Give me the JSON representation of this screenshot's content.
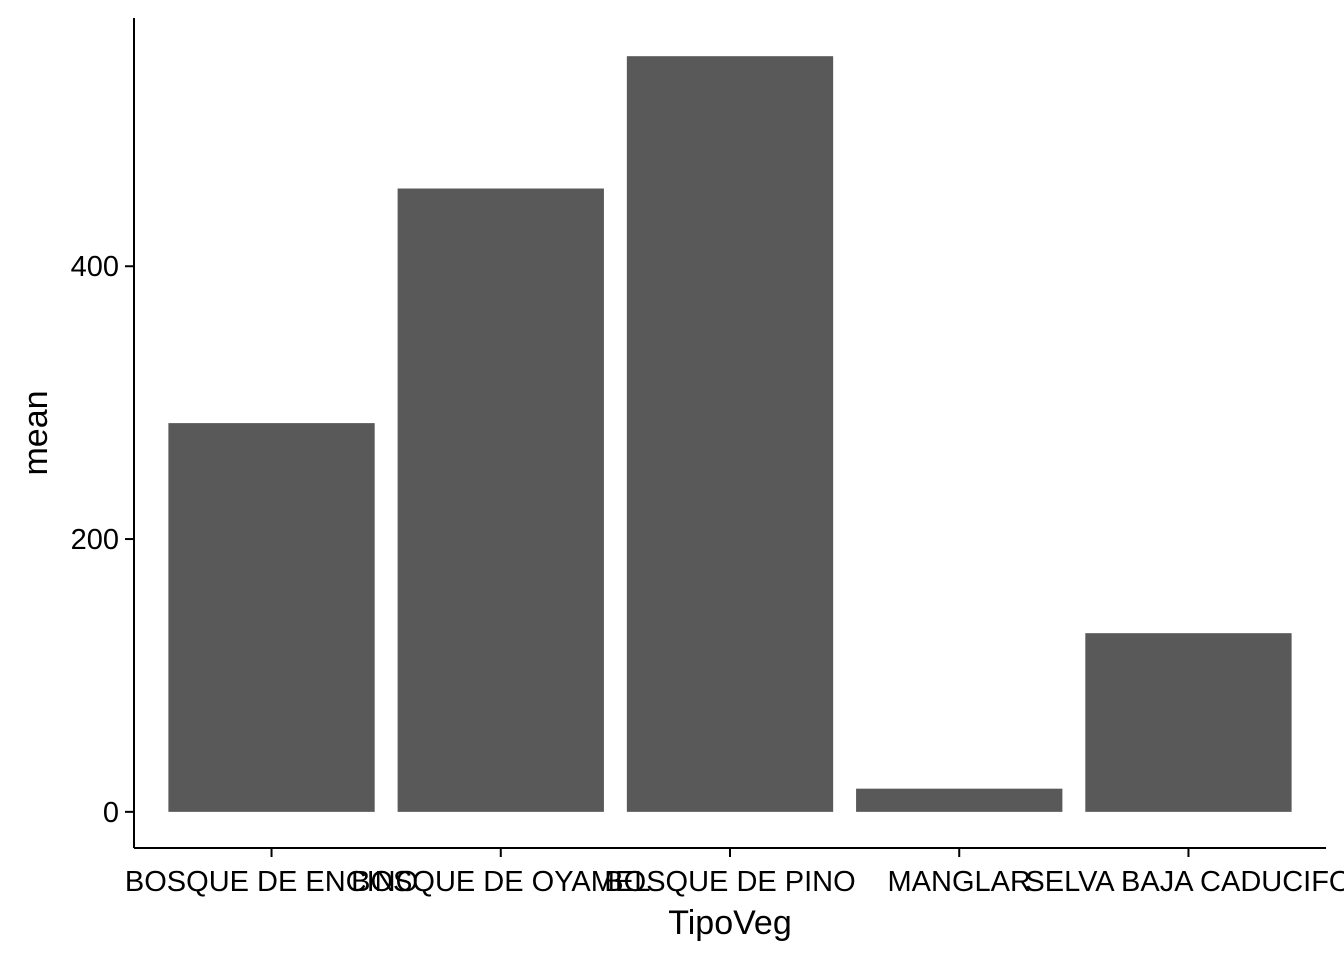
{
  "chart_data": {
    "type": "bar",
    "title": "",
    "xlabel": "TipoVeg",
    "ylabel": "mean",
    "categories": [
      "BOSQUE DE ENCINO",
      "BOSQUE DE OYAMEL",
      "BOSQUE DE PINO",
      "MANGLAR",
      "SELVA BAJA CADUCIFO"
    ],
    "values": [
      285,
      457,
      554,
      17,
      131
    ],
    "ylim": [
      -26.5,
      582
    ],
    "yticks": [
      0,
      200,
      400
    ],
    "ytick_labels": [
      "0",
      "200",
      "400"
    ],
    "grid": false,
    "legend": "none",
    "bar_color": "#595959"
  }
}
